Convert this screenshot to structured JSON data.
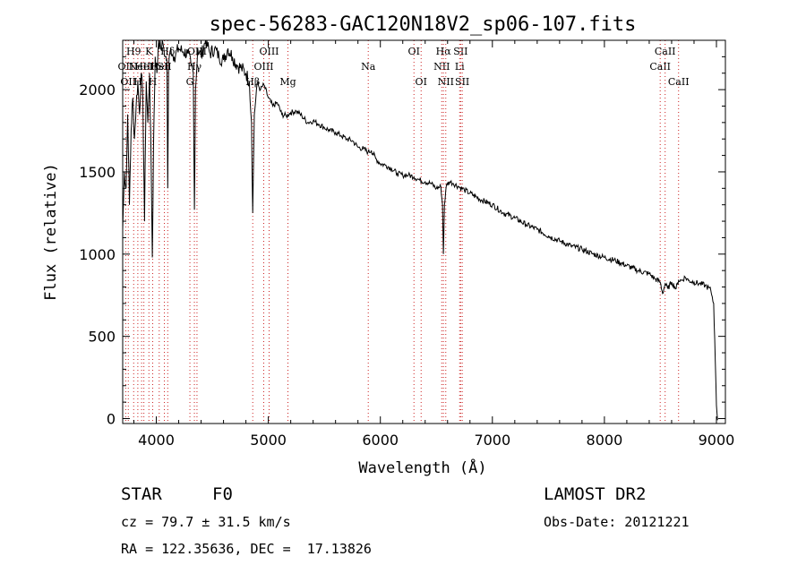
{
  "chart_data": {
    "type": "line",
    "title": "spec-56283-GAC120N18V2_sp06-107.fits",
    "xlabel": "Wavelength (Å)",
    "ylabel": "Flux (relative)",
    "xlim": [
      3700,
      9080
    ],
    "ylim": [
      -30,
      2300
    ],
    "x_ticks": [
      4000,
      5000,
      6000,
      7000,
      8000,
      9000
    ],
    "x_tick_labels": [
      "4000",
      "5000",
      "6000",
      "7000",
      "8000",
      "9000"
    ],
    "y_ticks": [
      0,
      500,
      1000,
      1500,
      2000
    ],
    "y_tick_labels": [
      "0",
      "500",
      "1000",
      "1500",
      "2000"
    ],
    "series": [
      {
        "name": "spectrum",
        "x": [
          3700,
          3715,
          3730,
          3745,
          3760,
          3775,
          3790,
          3805,
          3820,
          3835,
          3850,
          3865,
          3880,
          3895,
          3910,
          3925,
          3940,
          3955,
          3965,
          3975,
          3990,
          4005,
          4020,
          4040,
          4060,
          4080,
          4095,
          4102,
          4110,
          4130,
          4160,
          4200,
          4240,
          4280,
          4310,
          4330,
          4340,
          4350,
          4370,
          4400,
          4440,
          4480,
          4520,
          4560,
          4600,
          4640,
          4680,
          4720,
          4760,
          4800,
          4830,
          4850,
          4861,
          4875,
          4900,
          4930,
          4960,
          5000,
          5040,
          5080,
          5120,
          5160,
          5200,
          5250,
          5300,
          5350,
          5400,
          5450,
          5500,
          5550,
          5600,
          5650,
          5700,
          5750,
          5800,
          5850,
          5890,
          5920,
          5960,
          6000,
          6050,
          6100,
          6150,
          6200,
          6250,
          6300,
          6350,
          6400,
          6450,
          6500,
          6540,
          6555,
          6563,
          6572,
          6590,
          6620,
          6650,
          6700,
          6750,
          6800,
          6900,
          7000,
          7100,
          7200,
          7300,
          7400,
          7500,
          7600,
          7700,
          7800,
          7900,
          8000,
          8100,
          8200,
          8300,
          8400,
          8450,
          8498,
          8520,
          8542,
          8565,
          8600,
          8640,
          8662,
          8690,
          8720,
          8750,
          8800,
          8850,
          8900,
          8950,
          8975,
          8990,
          9000,
          9010
        ],
        "y": [
          1150,
          1500,
          1400,
          1850,
          1300,
          1750,
          1950,
          1700,
          1900,
          2050,
          1850,
          2100,
          1950,
          1200,
          2050,
          1800,
          2100,
          1500,
          980,
          1650,
          2200,
          2100,
          2300,
          2250,
          2280,
          2200,
          2180,
          1400,
          2150,
          2250,
          2200,
          2250,
          2230,
          2220,
          2150,
          2100,
          1270,
          2000,
          2250,
          2200,
          2300,
          2220,
          2250,
          2200,
          2180,
          2250,
          2200,
          2150,
          2130,
          2100,
          2050,
          1800,
          1250,
          1850,
          2040,
          2000,
          2030,
          1950,
          1900,
          1920,
          1850,
          1840,
          1860,
          1870,
          1840,
          1800,
          1810,
          1790,
          1770,
          1750,
          1740,
          1720,
          1700,
          1690,
          1650,
          1640,
          1620,
          1630,
          1580,
          1550,
          1540,
          1520,
          1490,
          1480,
          1480,
          1470,
          1450,
          1440,
          1430,
          1400,
          1410,
          1300,
          1000,
          1300,
          1420,
          1440,
          1430,
          1410,
          1390,
          1370,
          1330,
          1300,
          1250,
          1220,
          1180,
          1150,
          1110,
          1080,
          1050,
          1030,
          1000,
          980,
          960,
          930,
          900,
          880,
          850,
          830,
          760,
          820,
          790,
          830,
          790,
          840,
          840,
          860,
          840,
          830,
          820,
          810,
          780,
          700,
          350,
          80,
          -10
        ]
      }
    ],
    "spectral_lines": [
      {
        "x": 3727,
        "label": "OII",
        "row": 1
      },
      {
        "x": 3750,
        "label": "OII",
        "row": 2
      },
      {
        "x": 3798,
        "label": "H9",
        "row": 0
      },
      {
        "x": 3835,
        "label": "H",
        "row": 2
      },
      {
        "x": 3869,
        "label": "NeIII",
        "row": 1
      },
      {
        "x": 3889,
        "label": "HeI",
        "row": 1
      },
      {
        "x": 3934,
        "label": "K",
        "row": 0
      },
      {
        "x": 3968,
        "label": "H",
        "row": 2
      },
      {
        "x": 4026,
        "label": "HeI",
        "row": 1
      },
      {
        "x": 4072,
        "label": "SII",
        "row": 1
      },
      {
        "x": 4102,
        "label": "Hδ",
        "row": 0
      },
      {
        "x": 4300,
        "label": "G",
        "row": 2
      },
      {
        "x": 4340,
        "label": "Hγ",
        "row": 1
      },
      {
        "x": 4363,
        "label": "OIII",
        "row": 0
      },
      {
        "x": 4861,
        "label": "Hβ",
        "row": 2
      },
      {
        "x": 4959,
        "label": "OIII",
        "row": 1
      },
      {
        "x": 5007,
        "label": "OIII",
        "row": 0
      },
      {
        "x": 5175,
        "label": "Mg",
        "row": 2
      },
      {
        "x": 5892,
        "label": "Na",
        "row": 1
      },
      {
        "x": 6300,
        "label": "OI",
        "row": 0
      },
      {
        "x": 6364,
        "label": "OI",
        "row": 2
      },
      {
        "x": 6548,
        "label": "NII",
        "row": 1
      },
      {
        "x": 6563,
        "label": "Hα",
        "row": 0
      },
      {
        "x": 6584,
        "label": "NII",
        "row": 2
      },
      {
        "x": 6708,
        "label": "Li",
        "row": 1
      },
      {
        "x": 6717,
        "label": "SII",
        "row": 0
      },
      {
        "x": 6731,
        "label": "SII",
        "row": 2
      },
      {
        "x": 8498,
        "label": "CaII",
        "row": 1
      },
      {
        "x": 8542,
        "label": "CaII",
        "row": 0
      },
      {
        "x": 8662,
        "label": "CaII",
        "row": 2
      }
    ]
  },
  "info": {
    "object_class": "STAR",
    "subclass": "F0",
    "survey": "LAMOST DR2",
    "cz": "cz = 79.7 ± 31.5 km/s",
    "obs_date": "Obs-Date: 20121221",
    "coords": "RA = 122.35636, DEC =  17.13826"
  }
}
